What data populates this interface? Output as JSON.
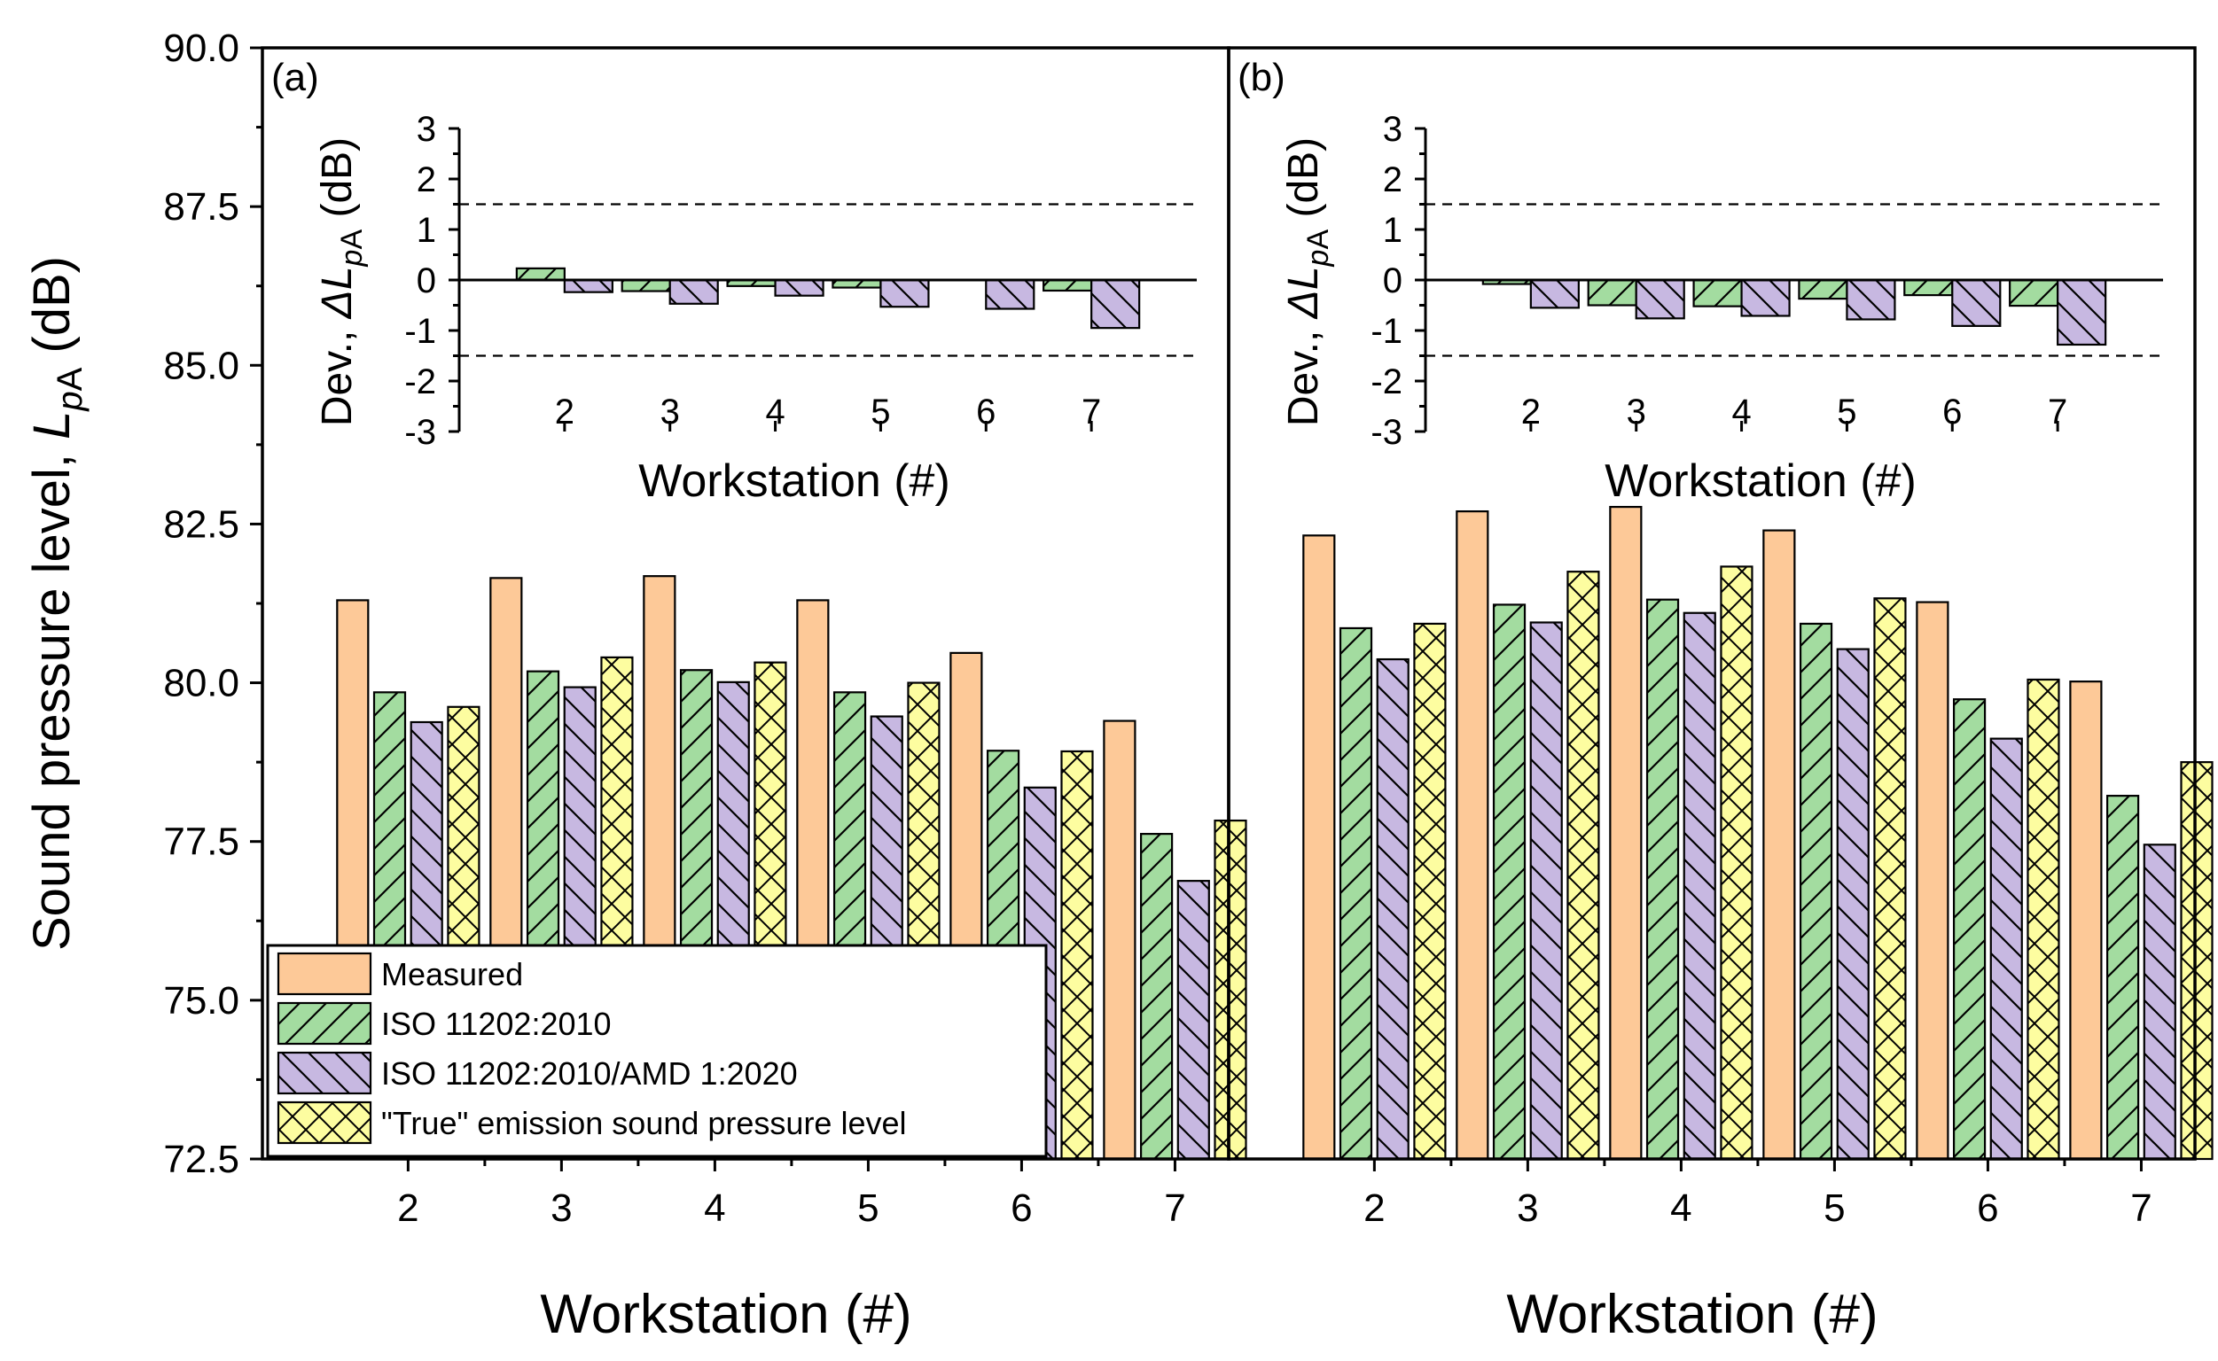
{
  "chart_data": {
    "type": "bar",
    "ylabel": {
      "prefix": "Sound pressure level, ",
      "symbol": "L",
      "subscript_italic": "p",
      "subscript": "A",
      "unit": " (dB)"
    },
    "ylim": [
      72.5,
      90.0
    ],
    "yticks": [
      "72.5",
      "75.0",
      "77.5",
      "80.0",
      "82.5",
      "85.0",
      "87.5",
      "90.0"
    ],
    "xlabel": "Workstation (#)",
    "categories": [
      "2",
      "3",
      "4",
      "5",
      "6",
      "7"
    ],
    "legend": {
      "placement": "lower-left of panel (a)",
      "entries": [
        {
          "name": "Measured",
          "color": "#fdc998",
          "pattern": "none"
        },
        {
          "name": "ISO 11202:2010",
          "color": "#a3dca0",
          "pattern": "forward-diagonal"
        },
        {
          "name": "ISO 11202:2010/AMD 1:2020",
          "color": "#c7b8e1",
          "pattern": "back-diagonal"
        },
        {
          "name": "\"True\" emission sound pressure level",
          "color": "#fdfda0",
          "pattern": "crosshatch"
        }
      ]
    },
    "panels": [
      {
        "label": "(a)",
        "series": [
          {
            "name": "Measured",
            "values": [
              81.3,
              81.65,
              81.68,
              81.3,
              80.47,
              79.4
            ]
          },
          {
            "name": "ISO 11202:2010",
            "values": [
              79.85,
              80.18,
              80.2,
              79.85,
              78.93,
              77.62
            ]
          },
          {
            "name": "ISO 11202:2010/AMD 1:2020",
            "values": [
              79.38,
              79.93,
              80.01,
              79.47,
              78.35,
              76.88
            ]
          },
          {
            "name": "\"True\" emission sound pressure level",
            "values": [
              79.62,
              80.4,
              80.32,
              80.0,
              78.92,
              77.83
            ]
          }
        ],
        "inset": {
          "ylabel": {
            "prefix": "Dev., ",
            "symbol": "ΔL",
            "subscript_italic": "p",
            "subscript": "A",
            "unit": " (dB)"
          },
          "ylim": [
            -3,
            3
          ],
          "yticks": [
            "-3",
            "-2",
            "-1",
            "0",
            "1",
            "2",
            "3"
          ],
          "reference_lines": [
            1.5,
            -1.5
          ],
          "xlabel": "Workstation (#)",
          "categories": [
            "2",
            "3",
            "4",
            "5",
            "6",
            "7"
          ],
          "series": [
            {
              "name": "ISO 11202:2010",
              "values": [
                0.23,
                -0.22,
                -0.12,
                -0.15,
                0.0,
                -0.21
              ]
            },
            {
              "name": "ISO 11202:2010/AMD 1:2020",
              "values": [
                -0.24,
                -0.47,
                -0.31,
                -0.53,
                -0.57,
                -0.95
              ]
            }
          ]
        }
      },
      {
        "label": "(b)",
        "series": [
          {
            "name": "Measured",
            "values": [
              82.32,
              82.7,
              82.77,
              82.4,
              81.27,
              80.02
            ]
          },
          {
            "name": "ISO 11202:2010",
            "values": [
              80.86,
              81.23,
              81.31,
              80.93,
              79.74,
              78.22
            ]
          },
          {
            "name": "ISO 11202:2010/AMD 1:2020",
            "values": [
              80.37,
              80.95,
              81.1,
              80.53,
              79.12,
              77.45
            ]
          },
          {
            "name": "\"True\" emission sound pressure level",
            "values": [
              80.93,
              81.75,
              81.83,
              81.33,
              80.05,
              78.75
            ]
          }
        ],
        "inset": {
          "ylabel": {
            "prefix": "Dev., ",
            "symbol": "ΔL",
            "subscript_italic": "p",
            "subscript": "A",
            "unit": " (dB)"
          },
          "ylim": [
            -3,
            3
          ],
          "yticks": [
            "-3",
            "-2",
            "-1",
            "0",
            "1",
            "2",
            "3"
          ],
          "reference_lines": [
            1.5,
            -1.5
          ],
          "xlabel": "Workstation (#)",
          "categories": [
            "2",
            "3",
            "4",
            "5",
            "6",
            "7"
          ],
          "series": [
            {
              "name": "ISO 11202:2010",
              "values": [
                -0.08,
                -0.5,
                -0.52,
                -0.37,
                -0.3,
                -0.51
              ]
            },
            {
              "name": "ISO 11202:2010/AMD 1:2020",
              "values": [
                -0.55,
                -0.76,
                -0.71,
                -0.78,
                -0.91,
                -1.28
              ]
            }
          ]
        }
      }
    ]
  }
}
